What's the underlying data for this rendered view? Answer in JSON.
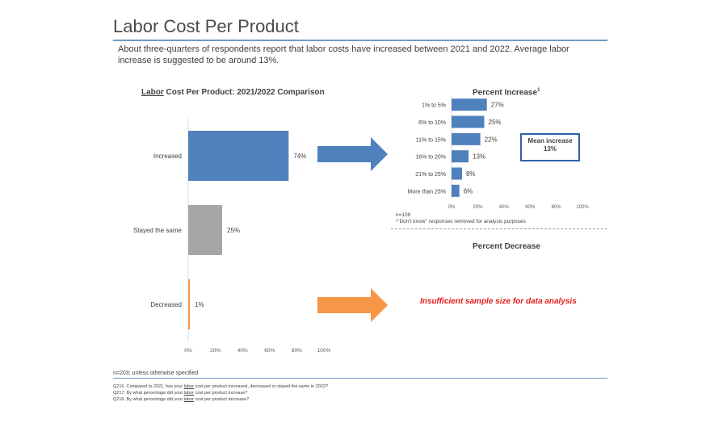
{
  "page": {
    "title": "Labor Cost Per Product",
    "summary": "About three-quarters of respondents report that labor costs have increased between 2021 and 2022.  Average labor increase is suggested to be around 13%."
  },
  "left_chart": {
    "title_underlined": "Labor",
    "title_rest": " Cost Per Product: 2021/2022 Comparison"
  },
  "right_chart": {
    "title": "Percent Increase",
    "title_sup": "1",
    "mean_label": "Mean increase",
    "mean_value": "13%",
    "base_note": "n=109",
    "footnote": "¹\"Don't know\" responses removed for analysis purposes"
  },
  "decrease": {
    "title": "Percent Decrease",
    "message": "Insufficient sample size for data analysis"
  },
  "footer": {
    "base_note": "n=203; unless otherwise specified",
    "q1_pre": "Q216. Compared to 2021, has your ",
    "q1_u": "labor",
    "q1_post": " cost per product increased, decreased or stayed the same in 2022?",
    "q2_pre": "Q217. By what percentage did your ",
    "q2_u": "labor",
    "q2_post": " cost per product increase?",
    "q3_pre": "Q218. By what percentage did your ",
    "q3_u": "labor",
    "q3_post": " cost per product decrease?"
  },
  "chart_data": [
    {
      "type": "bar",
      "orientation": "horizontal",
      "title": "Labor Cost Per Product: 2021/2022 Comparison",
      "categories": [
        "Increased",
        "Stayed the same",
        "Decreased"
      ],
      "values": [
        74,
        25,
        1
      ],
      "value_labels": [
        "74%",
        "25%",
        "1%"
      ],
      "colors": [
        "#4f81bd",
        "#a5a5a5",
        "#f79646"
      ],
      "xlim": [
        0,
        100
      ],
      "x_ticks": [
        "0%",
        "20%",
        "40%",
        "60%",
        "80%",
        "100%"
      ],
      "grid": false
    },
    {
      "type": "bar",
      "orientation": "horizontal",
      "title": "Percent Increase",
      "categories": [
        "1% to 5%",
        "6% to 10%",
        "11% to 15%",
        "16% to 20%",
        "21% to 25%",
        "More than 25%"
      ],
      "values": [
        27,
        25,
        22,
        13,
        8,
        6
      ],
      "value_labels": [
        "27%",
        "25%",
        "22%",
        "13%",
        "8%",
        "6%"
      ],
      "color": "#4f81bd",
      "xlim": [
        0,
        100
      ],
      "x_ticks": [
        "0%",
        "20%",
        "40%",
        "60%",
        "80%",
        "100%"
      ],
      "grid": false
    }
  ],
  "colors": {
    "accent_rule": "#6f9cc3",
    "arrow_blue": "#4f81bd",
    "arrow_orange": "#f79646",
    "alert_red": "#e31b1b"
  }
}
